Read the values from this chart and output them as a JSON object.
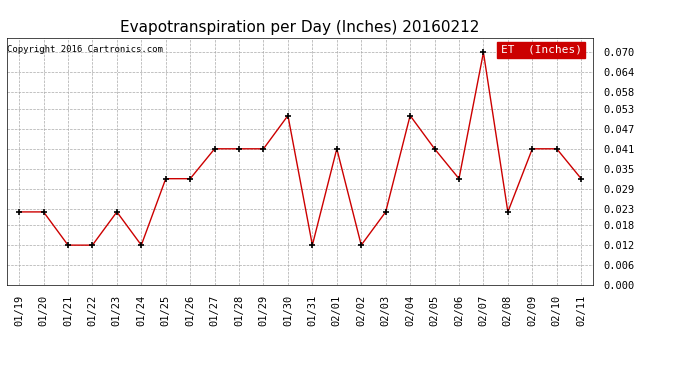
{
  "title": "Evapotranspiration per Day (Inches) 20160212",
  "copyright": "Copyright 2016 Cartronics.com",
  "legend_label": "ET  (Inches)",
  "dates": [
    "01/19",
    "01/20",
    "01/21",
    "01/22",
    "01/23",
    "01/24",
    "01/25",
    "01/26",
    "01/27",
    "01/28",
    "01/29",
    "01/30",
    "01/31",
    "02/01",
    "02/02",
    "02/03",
    "02/04",
    "02/05",
    "02/06",
    "02/07",
    "02/08",
    "02/09",
    "02/10",
    "02/11"
  ],
  "values": [
    0.022,
    0.022,
    0.012,
    0.012,
    0.022,
    0.012,
    0.032,
    0.032,
    0.041,
    0.041,
    0.041,
    0.051,
    0.012,
    0.041,
    0.012,
    0.022,
    0.051,
    0.041,
    0.032,
    0.07,
    0.022,
    0.041,
    0.041,
    0.032
  ],
  "line_color": "#cc0000",
  "marker": "+",
  "marker_color": "#000000",
  "bg_color": "#ffffff",
  "grid_color": "#aaaaaa",
  "ylim": [
    0.0,
    0.0745
  ],
  "yticks": [
    0.0,
    0.006,
    0.012,
    0.018,
    0.023,
    0.029,
    0.035,
    0.041,
    0.047,
    0.053,
    0.058,
    0.064,
    0.07
  ],
  "legend_bg": "#cc0000",
  "legend_text_color": "#ffffff",
  "title_fontsize": 11,
  "copyright_fontsize": 6.5,
  "tick_fontsize": 7.5,
  "legend_fontsize": 8
}
